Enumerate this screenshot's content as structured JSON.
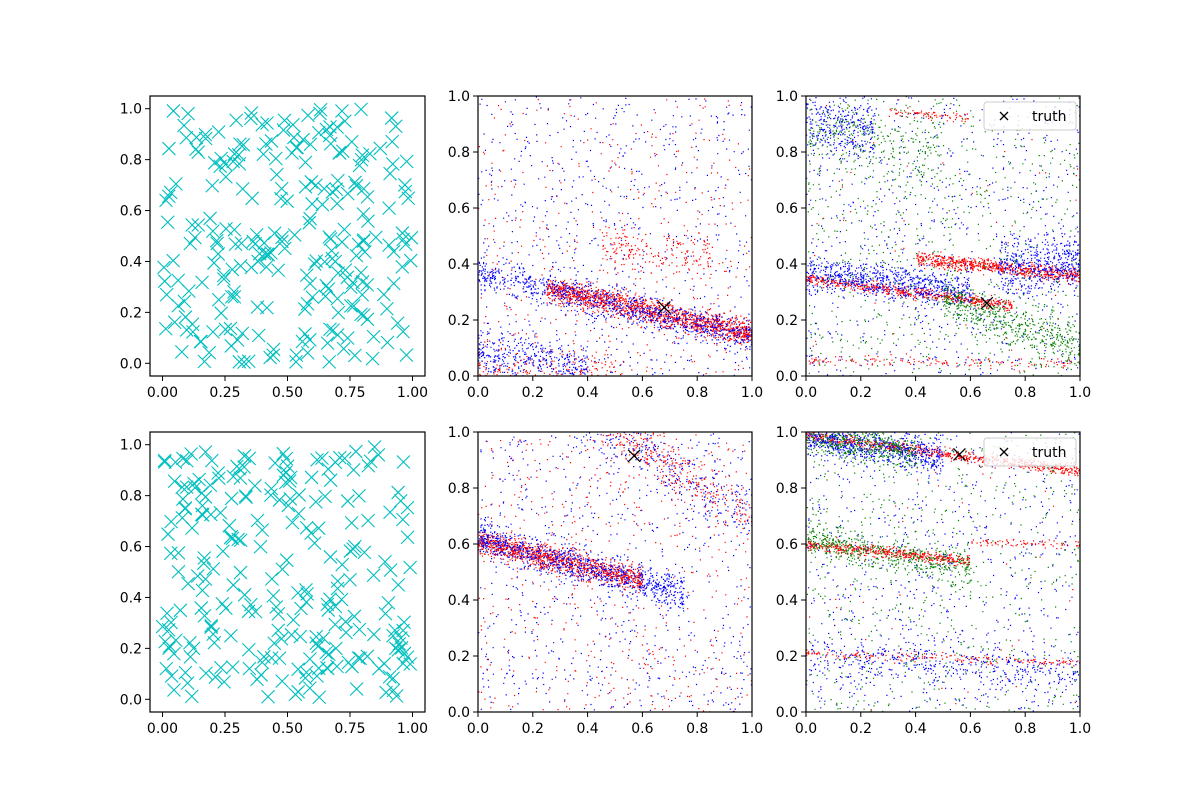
{
  "figure": {
    "background": "#ffffff",
    "colors": {
      "cyan": "#00bfbf",
      "red": "#ff0000",
      "blue": "#0000ff",
      "green": "#008000",
      "truth": "#000000",
      "axis": "#000000",
      "legend_border": "#cccccc"
    }
  },
  "chart_data": [
    {
      "panel": "row1-col1",
      "type": "scatter",
      "marker": "x",
      "color": "#00bfbf",
      "xlim": [
        -0.05,
        1.05
      ],
      "ylim": [
        -0.05,
        1.05
      ],
      "xticks": [
        "0.00",
        "0.25",
        "0.50",
        "0.75",
        "1.00"
      ],
      "yticks": [
        "0.0",
        "0.2",
        "0.4",
        "0.6",
        "0.8",
        "1.0"
      ],
      "grid": false,
      "n_points": 250,
      "distribution": "uniform random in [0, 1] x [0, 1]"
    },
    {
      "panel": "row1-col2",
      "type": "scatter",
      "marker": "dot",
      "xlim": [
        0,
        1
      ],
      "ylim": [
        0,
        1
      ],
      "xticks": [
        "0.0",
        "0.2",
        "0.4",
        "0.6",
        "0.8",
        "1.0"
      ],
      "yticks": [
        "0.0",
        "0.2",
        "0.4",
        "0.6",
        "0.8",
        "1.0"
      ],
      "grid": false,
      "truth": {
        "x": 0.68,
        "y": 0.245,
        "marker": "x"
      },
      "series": [
        {
          "color": "#ff0000",
          "bands": [
            {
              "x0": 0.0,
              "y0": 0.37,
              "x1": 1.0,
              "y1": 0.15,
              "spread": 0.022,
              "xmin": 0.25,
              "xmax": 1.0,
              "n": 1500
            },
            {
              "x0": 0.0,
              "y0": 0.02,
              "x1": 1.0,
              "y1": 0.0,
              "spread": 0.04,
              "xmin": 0.0,
              "xmax": 0.5,
              "n": 250
            },
            {
              "x0": 0.0,
              "y0": 0.52,
              "x1": 1.0,
              "y1": 0.4,
              "spread": 0.04,
              "xmin": 0.45,
              "xmax": 0.85,
              "n": 200
            }
          ],
          "uniform": 400
        },
        {
          "color": "#0000ff",
          "bands": [
            {
              "x0": 0.0,
              "y0": 0.37,
              "x1": 1.0,
              "y1": 0.14,
              "spread": 0.03,
              "xmin": 0.0,
              "xmax": 1.0,
              "n": 900
            },
            {
              "x0": 0.0,
              "y0": 0.08,
              "x1": 1.0,
              "y1": 0.0,
              "spread": 0.04,
              "xmin": 0.0,
              "xmax": 0.4,
              "n": 350
            }
          ],
          "uniform": 700
        }
      ]
    },
    {
      "panel": "row1-col3",
      "type": "scatter",
      "marker": "dot",
      "xlim": [
        0,
        1
      ],
      "ylim": [
        0,
        1
      ],
      "xticks": [
        "0.0",
        "0.2",
        "0.4",
        "0.6",
        "0.8",
        "1.0"
      ],
      "yticks": [
        "0.0",
        "0.2",
        "0.4",
        "0.6",
        "0.8",
        "1.0"
      ],
      "grid": false,
      "legend": {
        "label": "truth",
        "placement": "upper right"
      },
      "truth": {
        "x": 0.66,
        "y": 0.26,
        "marker": "x"
      },
      "series": [
        {
          "color": "#ff0000",
          "bands": [
            {
              "x0": 0.0,
              "y0": 0.35,
              "x1": 1.0,
              "y1": 0.22,
              "spread": 0.01,
              "xmin": 0.0,
              "xmax": 0.75,
              "n": 600
            },
            {
              "x0": 0.0,
              "y0": 0.46,
              "x1": 1.0,
              "y1": 0.36,
              "spread": 0.012,
              "xmin": 0.4,
              "xmax": 1.0,
              "n": 700
            },
            {
              "x0": 0.0,
              "y0": 0.06,
              "x1": 1.0,
              "y1": 0.04,
              "spread": 0.01,
              "xmin": 0.0,
              "xmax": 1.0,
              "n": 150
            },
            {
              "x0": 0.0,
              "y0": 0.98,
              "x1": 1.0,
              "y1": 0.88,
              "spread": 0.008,
              "xmin": 0.3,
              "xmax": 0.6,
              "n": 80
            }
          ],
          "uniform": 50
        },
        {
          "color": "#0000ff",
          "bands": [
            {
              "x0": 0.0,
              "y0": 0.37,
              "x1": 1.0,
              "y1": 0.26,
              "spread": 0.03,
              "xmin": 0.0,
              "xmax": 0.6,
              "n": 700
            },
            {
              "x0": 0.0,
              "y0": 0.3,
              "x1": 1.0,
              "y1": 0.42,
              "spread": 0.05,
              "xmin": 0.7,
              "xmax": 1.0,
              "n": 500
            },
            {
              "x0": 0.0,
              "y0": 0.9,
              "x1": 1.0,
              "y1": 0.8,
              "spread": 0.05,
              "xmin": 0.0,
              "xmax": 0.25,
              "n": 300
            }
          ],
          "uniform": 700
        },
        {
          "color": "#008000",
          "bands": [
            {
              "x0": 0.0,
              "y0": 0.45,
              "x1": 1.0,
              "y1": 0.1,
              "spread": 0.04,
              "xmin": 0.5,
              "xmax": 1.0,
              "n": 500
            },
            {
              "x0": 0.0,
              "y0": 0.88,
              "x1": 1.0,
              "y1": 0.7,
              "spread": 0.06,
              "xmin": 0.0,
              "xmax": 0.5,
              "n": 250
            }
          ],
          "uniform": 700
        }
      ]
    },
    {
      "panel": "row2-col1",
      "type": "scatter",
      "marker": "x",
      "color": "#00bfbf",
      "xlim": [
        -0.05,
        1.05
      ],
      "ylim": [
        -0.05,
        1.05
      ],
      "xticks": [
        "0.00",
        "0.25",
        "0.50",
        "0.75",
        "1.00"
      ],
      "yticks": [
        "0.0",
        "0.2",
        "0.4",
        "0.6",
        "0.8",
        "1.0"
      ],
      "grid": false,
      "n_points": 250,
      "distribution": "uniform random in [0, 1] x [0, 1]"
    },
    {
      "panel": "row2-col2",
      "type": "scatter",
      "marker": "dot",
      "xlim": [
        0,
        1
      ],
      "ylim": [
        0,
        1
      ],
      "xticks": [
        "0.0",
        "0.2",
        "0.4",
        "0.6",
        "0.8",
        "1.0"
      ],
      "yticks": [
        "0.0",
        "0.2",
        "0.4",
        "0.6",
        "0.8",
        "1.0"
      ],
      "grid": false,
      "truth": {
        "x": 0.57,
        "y": 0.915,
        "marker": "x"
      },
      "series": [
        {
          "color": "#ff0000",
          "bands": [
            {
              "x0": 0.0,
              "y0": 0.61,
              "x1": 1.0,
              "y1": 0.38,
              "spread": 0.022,
              "xmin": 0.0,
              "xmax": 0.6,
              "n": 1200
            },
            {
              "x0": 0.0,
              "y0": 1.3,
              "x1": 1.0,
              "y1": 0.7,
              "spread": 0.05,
              "xmin": 0.45,
              "xmax": 1.0,
              "n": 350
            }
          ],
          "uniform": 500
        },
        {
          "color": "#0000ff",
          "bands": [
            {
              "x0": 0.0,
              "y0": 0.62,
              "x1": 1.0,
              "y1": 0.36,
              "spread": 0.03,
              "xmin": 0.0,
              "xmax": 0.75,
              "n": 900
            },
            {
              "x0": 0.0,
              "y0": 1.3,
              "x1": 1.0,
              "y1": 0.7,
              "spread": 0.06,
              "xmin": 0.35,
              "xmax": 1.0,
              "n": 300
            }
          ],
          "uniform": 700
        }
      ]
    },
    {
      "panel": "row2-col3",
      "type": "scatter",
      "marker": "dot",
      "xlim": [
        0,
        1
      ],
      "ylim": [
        0,
        1
      ],
      "xticks": [
        "0.0",
        "0.2",
        "0.4",
        "0.6",
        "0.8",
        "1.0"
      ],
      "yticks": [
        "0.0",
        "0.2",
        "0.4",
        "0.6",
        "0.8",
        "1.0"
      ],
      "grid": false,
      "legend": {
        "label": "truth",
        "placement": "upper right"
      },
      "truth": {
        "x": 0.56,
        "y": 0.92,
        "marker": "x"
      },
      "series": [
        {
          "color": "#ff0000",
          "bands": [
            {
              "x0": 0.0,
              "y0": 0.99,
              "x1": 1.0,
              "y1": 0.86,
              "spread": 0.01,
              "xmin": 0.0,
              "xmax": 1.0,
              "n": 700
            },
            {
              "x0": 0.0,
              "y0": 0.6,
              "x1": 1.0,
              "y1": 0.5,
              "spread": 0.01,
              "xmin": 0.0,
              "xmax": 0.6,
              "n": 500
            },
            {
              "x0": 0.0,
              "y0": 0.62,
              "x1": 1.0,
              "y1": 0.6,
              "spread": 0.008,
              "xmin": 0.6,
              "xmax": 1.0,
              "n": 80
            },
            {
              "x0": 0.0,
              "y0": 0.21,
              "x1": 1.0,
              "y1": 0.18,
              "spread": 0.008,
              "xmin": 0.0,
              "xmax": 1.0,
              "n": 200
            }
          ],
          "uniform": 50
        },
        {
          "color": "#0000ff",
          "bands": [
            {
              "x0": 0.0,
              "y0": 0.99,
              "x1": 1.0,
              "y1": 0.82,
              "spread": 0.03,
              "xmin": 0.0,
              "xmax": 0.5,
              "n": 700
            },
            {
              "x0": 0.0,
              "y0": 0.2,
              "x1": 1.0,
              "y1": 0.12,
              "spread": 0.04,
              "xmin": 0.0,
              "xmax": 1.0,
              "n": 400
            }
          ],
          "uniform": 700
        },
        {
          "color": "#008000",
          "bands": [
            {
              "x0": 0.0,
              "y0": 0.62,
              "x1": 1.0,
              "y1": 0.44,
              "spread": 0.03,
              "xmin": 0.0,
              "xmax": 0.6,
              "n": 500
            },
            {
              "x0": 0.0,
              "y0": 0.99,
              "x1": 1.0,
              "y1": 0.82,
              "spread": 0.03,
              "xmin": 0.0,
              "xmax": 0.4,
              "n": 400
            }
          ],
          "uniform": 600
        }
      ]
    }
  ]
}
